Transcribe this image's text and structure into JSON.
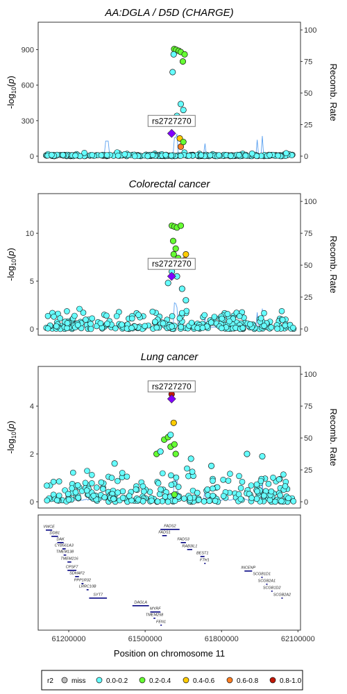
{
  "chart_data": [
    {
      "type": "scatter",
      "title": "AA:DGLA / D5D (CHARGE)",
      "ylabel": "-log10(p)",
      "ylabel_right": "Recomb. Rate",
      "ylim": [
        0,
        1120
      ],
      "yticks": [
        0,
        300,
        600,
        900
      ],
      "right_ticks": [
        0,
        25,
        50,
        75,
        100
      ],
      "lead_snp": {
        "label": "rs2727270",
        "x": 61604000,
        "y": 192
      },
      "points": [
        {
          "x": 61614000,
          "y": 905,
          "r2": "0.2-0.4"
        },
        {
          "x": 61622000,
          "y": 898,
          "r2": "0.2-0.4"
        },
        {
          "x": 61632000,
          "y": 890,
          "r2": "0.2-0.4"
        },
        {
          "x": 61640000,
          "y": 880,
          "r2": "0.2-0.4"
        },
        {
          "x": 61655000,
          "y": 860,
          "r2": "0.2-0.4"
        },
        {
          "x": 61648000,
          "y": 800,
          "r2": "0.2-0.4"
        },
        {
          "x": 61612000,
          "y": 860,
          "r2": "0.0-0.2"
        },
        {
          "x": 61608000,
          "y": 710,
          "r2": "0.0-0.2"
        },
        {
          "x": 61640000,
          "y": 440,
          "r2": "0.0-0.2"
        },
        {
          "x": 61650000,
          "y": 390,
          "r2": "0.0-0.2"
        },
        {
          "x": 61625000,
          "y": 340,
          "r2": "0.0-0.2"
        },
        {
          "x": 61618000,
          "y": 300,
          "r2": "0.0-0.2"
        },
        {
          "x": 61636000,
          "y": 150,
          "r2": "0.4-0.6"
        },
        {
          "x": 61640000,
          "y": 80,
          "r2": "0.6-0.8"
        },
        {
          "x": 61650000,
          "y": 120,
          "r2": "0.2-0.4"
        }
      ]
    },
    {
      "type": "scatter",
      "title": "Colorectal cancer",
      "ylabel": "-log10(p)",
      "ylabel_right": "Recomb. Rate",
      "ylim": [
        0,
        14
      ],
      "yticks": [
        0,
        5,
        10
      ],
      "right_ticks": [
        0,
        25,
        50,
        75,
        100
      ],
      "lead_snp": {
        "label": "rs2727270",
        "x": 61604000,
        "y": 5.5
      },
      "points": [
        {
          "x": 61605000,
          "y": 10.8,
          "r2": "0.2-0.4"
        },
        {
          "x": 61615000,
          "y": 10.7,
          "r2": "0.2-0.4"
        },
        {
          "x": 61625000,
          "y": 10.6,
          "r2": "0.2-0.4"
        },
        {
          "x": 61640000,
          "y": 10.8,
          "r2": "0.2-0.4"
        },
        {
          "x": 61610000,
          "y": 9.2,
          "r2": "0.2-0.4"
        },
        {
          "x": 61620000,
          "y": 8.4,
          "r2": "0.2-0.4"
        },
        {
          "x": 61612000,
          "y": 7.8,
          "r2": "0.2-0.4"
        },
        {
          "x": 61630000,
          "y": 7.4,
          "r2": "0.2-0.4"
        },
        {
          "x": 61660000,
          "y": 7.8,
          "r2": "0.4-0.6"
        },
        {
          "x": 61655000,
          "y": 7.2,
          "r2": "0.6-0.8"
        },
        {
          "x": 61625000,
          "y": 5.5,
          "r2": "0.0-0.2"
        },
        {
          "x": 61605000,
          "y": 6.0,
          "r2": "0.0-0.2"
        },
        {
          "x": 61590000,
          "y": 4.8,
          "r2": "0.0-0.2"
        },
        {
          "x": 61645000,
          "y": 4.2,
          "r2": "0.0-0.2"
        },
        {
          "x": 61660000,
          "y": 3.0,
          "r2": "0.0-0.2"
        }
      ]
    },
    {
      "type": "scatter",
      "title": "Lung cancer",
      "ylabel": "-log10(p)",
      "ylabel_right": "Recomb. Rate",
      "ylim": [
        0,
        5.6
      ],
      "yticks": [
        0,
        2,
        4
      ],
      "right_ticks": [
        0,
        25,
        50,
        75,
        100
      ],
      "lead_snp": {
        "label": "rs2727270",
        "x": 61604000,
        "y": 4.3
      },
      "points": [
        {
          "x": 61604000,
          "y": 4.5,
          "r2": "0.8-1.0"
        },
        {
          "x": 61612000,
          "y": 3.3,
          "r2": "0.4-0.6"
        },
        {
          "x": 61575000,
          "y": 2.6,
          "r2": "0.2-0.4"
        },
        {
          "x": 61590000,
          "y": 2.7,
          "r2": "0.2-0.4"
        },
        {
          "x": 61600000,
          "y": 2.3,
          "r2": "0.2-0.4"
        },
        {
          "x": 61615000,
          "y": 2.4,
          "r2": "0.2-0.4"
        },
        {
          "x": 61620000,
          "y": 2.0,
          "r2": "0.2-0.4"
        },
        {
          "x": 61545000,
          "y": 2.0,
          "r2": "0.2-0.4"
        },
        {
          "x": 61615000,
          "y": 0.3,
          "r2": "0.2-0.4"
        },
        {
          "x": 61600000,
          "y": 2.8,
          "r2": "0.0-0.2"
        },
        {
          "x": 61560000,
          "y": 2.1,
          "r2": "0.0-0.2"
        },
        {
          "x": 61680000,
          "y": 1.8,
          "r2": "0.0-0.2"
        },
        {
          "x": 61900000,
          "y": 2.0,
          "r2": "0.0-0.2"
        },
        {
          "x": 61960000,
          "y": 1.9,
          "r2": "0.0-0.2"
        },
        {
          "x": 61380000,
          "y": 1.6,
          "r2": "0.0-0.2"
        },
        {
          "x": 61760000,
          "y": 1.5,
          "r2": "0.0-0.2"
        }
      ]
    }
  ],
  "genes": [
    {
      "name": "VWCE",
      "start": 61110000,
      "end": 61135000
    },
    {
      "name": "DDB1",
      "start": 61132000,
      "end": 61158000
    },
    {
      "name": "DAK",
      "start": 61155000,
      "end": 61180000
    },
    {
      "name": "CYB561A3",
      "start": 61175000,
      "end": 61188000
    },
    {
      "name": "TMEM138",
      "start": 61180000,
      "end": 61190000
    },
    {
      "name": "TMEM216",
      "start": 61195000,
      "end": 61210000
    },
    {
      "name": "CPSF7",
      "start": 61195000,
      "end": 61230000
    },
    {
      "name": "SDHAF2",
      "start": 61225000,
      "end": 61240000
    },
    {
      "name": "PPP1R32",
      "start": 61250000,
      "end": 61258000
    },
    {
      "name": "LRRC10B",
      "start": 61270000,
      "end": 61278000
    },
    {
      "name": "SYT7",
      "start": 61280000,
      "end": 61350000
    },
    {
      "name": "DAGLA",
      "start": 61450000,
      "end": 61515000
    },
    {
      "name": "MYRF",
      "start": 61520000,
      "end": 61560000
    },
    {
      "name": "TMEM258",
      "start": 61533000,
      "end": 61540000
    },
    {
      "name": "FEN1",
      "start": 61560000,
      "end": 61565000
    },
    {
      "name": "FADS2",
      "start": 61560000,
      "end": 61635000
    },
    {
      "name": "FADS1",
      "start": 61567000,
      "end": 61585000
    },
    {
      "name": "FADS3",
      "start": 61640000,
      "end": 61660000
    },
    {
      "name": "RAB3IL1",
      "start": 61665000,
      "end": 61685000
    },
    {
      "name": "BEST1",
      "start": 61717000,
      "end": 61733000
    },
    {
      "name": "FTH1",
      "start": 61732000,
      "end": 61735000
    },
    {
      "name": "INCENP",
      "start": 61890000,
      "end": 61920000
    },
    {
      "name": "SCGB1D1",
      "start": 61956000,
      "end": 61960000
    },
    {
      "name": "SCGB2A1",
      "start": 61975000,
      "end": 61980000
    },
    {
      "name": "SCGB1D2",
      "start": 61995000,
      "end": 62000000
    },
    {
      "name": "SCGB2A2",
      "start": 62035000,
      "end": 62040000
    }
  ],
  "x_axis": {
    "label": "Position on chromosome 11",
    "ticks": [
      61200000,
      61500000,
      61800000,
      62100000
    ],
    "tick_labels": [
      "61200000",
      "61500000",
      "61800000",
      "62100000"
    ],
    "range": [
      61080000,
      62110000
    ]
  },
  "legend": {
    "title": "r2",
    "position": "bottom",
    "items": [
      {
        "label": "miss",
        "color": "#bebebe"
      },
      {
        "label": "0.0-0.2",
        "color": "#66ffff"
      },
      {
        "label": "0.2-0.4",
        "color": "#66ff33"
      },
      {
        "label": "0.4-0.6",
        "color": "#ffcc00"
      },
      {
        "label": "0.6-0.8",
        "color": "#ff7f24"
      },
      {
        "label": "0.8-1.0",
        "color": "#c21807"
      }
    ]
  },
  "colors": {
    "lead": "#8000ff",
    "recomb": "#5aa0f0",
    "gene_bar": "#000080"
  }
}
